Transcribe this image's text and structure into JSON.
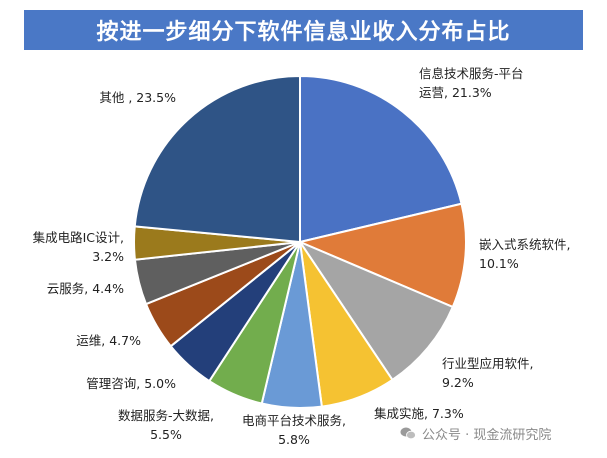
{
  "chart_data": {
    "type": "pie",
    "title": "按进一步细分下软件信息业收入分布占比",
    "slices": [
      {
        "label_lines": [
          "信息技术服务-平台",
          "运营, 21.3%"
        ],
        "name": "信息技术服务-平台运营",
        "value": 21.3,
        "color": "#4a72c4"
      },
      {
        "label_lines": [
          "嵌入式系统软件,",
          "10.1%"
        ],
        "name": "嵌入式系统软件",
        "value": 10.1,
        "color": "#e07b39"
      },
      {
        "label_lines": [
          "行业型应用软件,",
          "9.2%"
        ],
        "name": "行业型应用软件",
        "value": 9.2,
        "color": "#a5a5a5"
      },
      {
        "label_lines": [
          "集成实施, 7.3%"
        ],
        "name": "集成实施",
        "value": 7.3,
        "color": "#f5c232"
      },
      {
        "label_lines": [
          "电商平台技术服务,",
          "5.8%"
        ],
        "name": "电商平台技术服务",
        "value": 5.8,
        "color": "#6a9ad6"
      },
      {
        "label_lines": [
          "数据服务-大数据,",
          "5.5%"
        ],
        "name": "数据服务-大数据",
        "value": 5.5,
        "color": "#72ad4d"
      },
      {
        "label_lines": [
          "管理咨询, 5.0%"
        ],
        "name": "管理咨询",
        "value": 5.0,
        "color": "#233f7a"
      },
      {
        "label_lines": [
          "运维, 4.7%"
        ],
        "name": "运维",
        "value": 4.7,
        "color": "#9c4a1a"
      },
      {
        "label_lines": [
          "云服务, 4.4%"
        ],
        "name": "云服务",
        "value": 4.4,
        "color": "#5f5f5f"
      },
      {
        "label_lines": [
          "集成电路IC设计,",
          "3.2%"
        ],
        "name": "集成电路IC设计",
        "value": 3.2,
        "color": "#9b7a1c"
      },
      {
        "label_lines": [
          "其他 , 23.5%"
        ],
        "name": "其他",
        "value": 23.5,
        "color": "#2f5486"
      }
    ]
  },
  "watermark": "公众号 · 现金流研究院"
}
